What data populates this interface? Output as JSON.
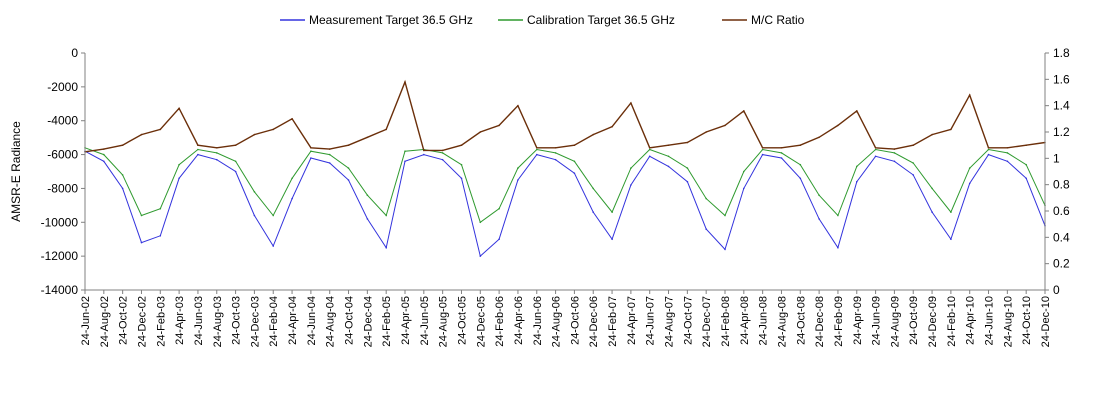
{
  "chart_data": {
    "type": "line",
    "title": "",
    "ylabel": "AMSR-E Radiance",
    "y2label": "",
    "xlabel": "",
    "ylim": [
      -14000,
      0
    ],
    "y2lim": [
      0,
      1.8
    ],
    "yticks": [
      "0",
      "-2000",
      "-4000",
      "-6000",
      "-8000",
      "-10000",
      "-12000",
      "-14000"
    ],
    "y2ticks": [
      "1.8",
      "1.6",
      "1.4",
      "1.2",
      "1",
      "0.8",
      "0.6",
      "0.4",
      "0.2",
      "0"
    ],
    "x_tick_labels": [
      "24-Jun-02",
      "24-Aug-02",
      "24-Oct-02",
      "24-Dec-02",
      "24-Feb-03",
      "24-Apr-03",
      "24-Jun-03",
      "24-Aug-03",
      "24-Oct-03",
      "24-Dec-03",
      "24-Feb-04",
      "24-Apr-04",
      "24-Jun-04",
      "24-Aug-04",
      "24-Oct-04",
      "24-Dec-04",
      "24-Feb-05",
      "24-Apr-05",
      "24-Jun-05",
      "24-Aug-05",
      "24-Oct-05",
      "24-Dec-05",
      "24-Feb-06",
      "24-Apr-06",
      "24-Jun-06",
      "24-Aug-06",
      "24-Oct-06",
      "24-Dec-06",
      "24-Feb-07",
      "24-Apr-07",
      "24-Jun-07",
      "24-Aug-07",
      "24-Oct-07",
      "24-Dec-07",
      "24-Feb-08",
      "24-Apr-08",
      "24-Jun-08",
      "24-Aug-08",
      "24-Oct-08",
      "24-Dec-08",
      "24-Feb-09",
      "24-Apr-09",
      "24-Jun-09",
      "24-Aug-09",
      "24-Oct-09",
      "24-Dec-09",
      "24-Feb-10",
      "24-Apr-10",
      "24-Jun-10",
      "24-Aug-10",
      "24-Oct-10",
      "24-Dec-10"
    ],
    "grid": false,
    "legend_position": "top-center",
    "series": [
      {
        "name": "Measurement Target 36.5 GHz",
        "axis": "left",
        "color": "#3333dd",
        "x": [
          "24-Jun-02",
          "24-Aug-02",
          "24-Oct-02",
          "24-Dec-02",
          "24-Feb-03",
          "24-Apr-03",
          "24-Jun-03",
          "24-Aug-03",
          "24-Oct-03",
          "24-Dec-03",
          "24-Feb-04",
          "24-Apr-04",
          "24-Jun-04",
          "24-Aug-04",
          "24-Oct-04",
          "24-Dec-04",
          "24-Feb-05",
          "24-Apr-05",
          "24-Jun-05",
          "24-Aug-05",
          "24-Oct-05",
          "24-Dec-05",
          "24-Feb-06",
          "24-Apr-06",
          "24-Jun-06",
          "24-Aug-06",
          "24-Oct-06",
          "24-Dec-06",
          "24-Feb-07",
          "24-Apr-07",
          "24-Jun-07",
          "24-Aug-07",
          "24-Oct-07",
          "24-Dec-07",
          "24-Feb-08",
          "24-Apr-08",
          "24-Jun-08",
          "24-Aug-08",
          "24-Oct-08",
          "24-Dec-08",
          "24-Feb-09",
          "24-Apr-09",
          "24-Jun-09",
          "24-Aug-09",
          "24-Oct-09",
          "24-Dec-09",
          "24-Feb-10",
          "24-Apr-10",
          "24-Jun-10",
          "24-Aug-10",
          "24-Oct-10",
          "24-Dec-10"
        ],
        "values": [
          -5800,
          -6400,
          -8000,
          -11200,
          -10800,
          -7400,
          -6000,
          -6300,
          -7000,
          -9600,
          -11400,
          -8600,
          -6200,
          -6500,
          -7500,
          -9800,
          -11500,
          -6400,
          -6000,
          -6300,
          -7400,
          -12000,
          -11000,
          -7500,
          -6000,
          -6300,
          -7100,
          -9400,
          -11000,
          -7800,
          -6100,
          -6700,
          -7600,
          -10400,
          -11600,
          -8000,
          -6000,
          -6200,
          -7400,
          -9800,
          -11500,
          -7600,
          -6100,
          -6400,
          -7200,
          -9400,
          -11000,
          -7700,
          -6000,
          -6400,
          -7400,
          -10200
        ]
      },
      {
        "name": "Calibration Target 36.5 GHz",
        "axis": "left",
        "color": "#2f9a2f",
        "x": [
          "24-Jun-02",
          "24-Aug-02",
          "24-Oct-02",
          "24-Dec-02",
          "24-Feb-03",
          "24-Apr-03",
          "24-Jun-03",
          "24-Aug-03",
          "24-Oct-03",
          "24-Dec-03",
          "24-Feb-04",
          "24-Apr-04",
          "24-Jun-04",
          "24-Aug-04",
          "24-Oct-04",
          "24-Dec-04",
          "24-Feb-05",
          "24-Apr-05",
          "24-Jun-05",
          "24-Aug-05",
          "24-Oct-05",
          "24-Dec-05",
          "24-Feb-06",
          "24-Apr-06",
          "24-Jun-06",
          "24-Aug-06",
          "24-Oct-06",
          "24-Dec-06",
          "24-Feb-07",
          "24-Apr-07",
          "24-Jun-07",
          "24-Aug-07",
          "24-Oct-07",
          "24-Dec-07",
          "24-Feb-08",
          "24-Apr-08",
          "24-Jun-08",
          "24-Aug-08",
          "24-Oct-08",
          "24-Dec-08",
          "24-Feb-09",
          "24-Apr-09",
          "24-Jun-09",
          "24-Aug-09",
          "24-Oct-09",
          "24-Dec-09",
          "24-Feb-10",
          "24-Apr-10",
          "24-Jun-10",
          "24-Aug-10",
          "24-Oct-10",
          "24-Dec-10"
        ],
        "values": [
          -5600,
          -6000,
          -7200,
          -9600,
          -9200,
          -6600,
          -5700,
          -5900,
          -6400,
          -8200,
          -9600,
          -7400,
          -5800,
          -6000,
          -6800,
          -8400,
          -9600,
          -5800,
          -5700,
          -5900,
          -6600,
          -10000,
          -9200,
          -6800,
          -5700,
          -5900,
          -6400,
          -8000,
          -9400,
          -6800,
          -5700,
          -6100,
          -6800,
          -8600,
          -9600,
          -7000,
          -5700,
          -5900,
          -6600,
          -8400,
          -9600,
          -6700,
          -5700,
          -5900,
          -6500,
          -8000,
          -9400,
          -6800,
          -5700,
          -5900,
          -6600,
          -9000
        ]
      },
      {
        "name": "M/C Ratio",
        "axis": "right",
        "color": "#6b2f0a",
        "x": [
          "24-Jun-02",
          "24-Aug-02",
          "24-Oct-02",
          "24-Dec-02",
          "24-Feb-03",
          "24-Apr-03",
          "24-Jun-03",
          "24-Aug-03",
          "24-Oct-03",
          "24-Dec-03",
          "24-Feb-04",
          "24-Apr-04",
          "24-Jun-04",
          "24-Aug-04",
          "24-Oct-04",
          "24-Dec-04",
          "24-Feb-05",
          "24-Apr-05",
          "24-Jun-05",
          "24-Aug-05",
          "24-Oct-05",
          "24-Dec-05",
          "24-Feb-06",
          "24-Apr-06",
          "24-Jun-06",
          "24-Aug-06",
          "24-Oct-06",
          "24-Dec-06",
          "24-Feb-07",
          "24-Apr-07",
          "24-Jun-07",
          "24-Aug-07",
          "24-Oct-07",
          "24-Dec-07",
          "24-Feb-08",
          "24-Apr-08",
          "24-Jun-08",
          "24-Aug-08",
          "24-Oct-08",
          "24-Dec-08",
          "24-Feb-09",
          "24-Apr-09",
          "24-Jun-09",
          "24-Aug-09",
          "24-Oct-09",
          "24-Dec-09",
          "24-Feb-10",
          "24-Apr-10",
          "24-Jun-10",
          "24-Aug-10",
          "24-Oct-10",
          "24-Dec-10"
        ],
        "values": [
          1.05,
          1.07,
          1.1,
          1.18,
          1.22,
          1.38,
          1.1,
          1.08,
          1.1,
          1.18,
          1.22,
          1.3,
          1.08,
          1.07,
          1.1,
          1.16,
          1.22,
          1.58,
          1.06,
          1.06,
          1.1,
          1.2,
          1.25,
          1.4,
          1.08,
          1.08,
          1.1,
          1.18,
          1.24,
          1.42,
          1.08,
          1.1,
          1.12,
          1.2,
          1.25,
          1.36,
          1.08,
          1.08,
          1.1,
          1.16,
          1.25,
          1.36,
          1.08,
          1.07,
          1.1,
          1.18,
          1.22,
          1.48,
          1.08,
          1.08,
          1.1,
          1.12
        ]
      }
    ]
  }
}
